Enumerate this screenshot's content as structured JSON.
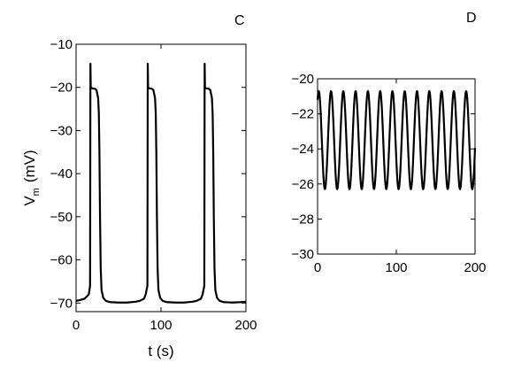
{
  "chart_data": [
    {
      "panel_label": "C",
      "type": "line",
      "xlim": [
        0,
        200
      ],
      "ylim": [
        -72,
        -10
      ],
      "xticks": [
        0,
        100,
        200
      ],
      "yticks": [
        -10,
        -20,
        -30,
        -40,
        -50,
        -60,
        -70
      ],
      "xlabel": "t (s)",
      "ylabel_main": "V",
      "ylabel_sub": "m",
      "ylabel_unit": "(mV)",
      "grid": false,
      "series": [
        {
          "x": [
            0,
            5,
            10,
            15,
            16.5,
            16.9,
            17.3,
            18.5,
            22,
            24,
            26,
            26.8,
            27.5,
            28.2,
            29,
            30,
            32,
            35,
            40,
            50,
            60,
            70,
            75,
            80,
            82,
            84,
            84.4,
            84.8,
            86,
            89,
            91,
            93,
            93.8,
            94.5,
            95.2,
            96,
            97,
            99,
            102,
            107,
            117,
            127,
            137,
            142,
            147,
            149,
            151,
            151.4,
            151.8,
            153,
            156,
            158,
            160,
            160.8,
            161.5,
            162.2,
            163,
            164,
            166,
            169,
            174,
            184,
            194,
            200
          ],
          "y": [
            -69.5,
            -69.3,
            -69.0,
            -68.0,
            -66.0,
            -14.5,
            -20.0,
            -20.2,
            -20.3,
            -20.6,
            -22.5,
            -26.0,
            -35.0,
            -50.0,
            -62.0,
            -67.0,
            -68.8,
            -69.5,
            -69.8,
            -69.9,
            -69.9,
            -69.7,
            -69.5,
            -69.0,
            -68.0,
            -66.0,
            -14.5,
            -20.0,
            -20.2,
            -20.3,
            -20.6,
            -22.5,
            -26.0,
            -35.0,
            -50.0,
            -62.0,
            -67.0,
            -68.8,
            -69.5,
            -69.8,
            -69.9,
            -69.9,
            -69.7,
            -69.5,
            -69.0,
            -68.0,
            -66.0,
            -14.5,
            -20.0,
            -20.2,
            -20.3,
            -20.6,
            -22.5,
            -26.0,
            -35.0,
            -50.0,
            -62.0,
            -67.0,
            -68.8,
            -69.5,
            -69.8,
            -69.9,
            -69.8,
            -69.7
          ]
        }
      ]
    },
    {
      "panel_label": "D",
      "type": "line",
      "xlim": [
        0,
        200
      ],
      "ylim": [
        -30,
        -20
      ],
      "xticks": [
        0,
        100,
        200
      ],
      "yticks": [
        -20,
        -22,
        -24,
        -26,
        -28,
        -30
      ],
      "xlabel": "",
      "grid": false,
      "oscillation": {
        "max": -20.7,
        "min": -26.3,
        "period": 15.6,
        "first_peak": 1.5
      }
    }
  ]
}
